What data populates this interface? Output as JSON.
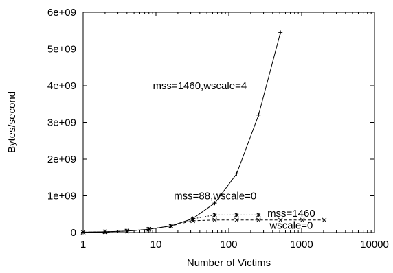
{
  "chart_data": {
    "type": "line",
    "xlabel": "Number of Victims",
    "ylabel": "Bytes/second",
    "xscale": "log",
    "xlim": [
      1,
      10000
    ],
    "ylim": [
      0,
      6000000000
    ],
    "x_ticks": [
      1,
      10,
      100,
      1000,
      10000
    ],
    "x_tick_labels": [
      "1",
      "10",
      "100",
      "1000",
      "10000"
    ],
    "y_ticks": [
      0,
      1000000000,
      2000000000,
      3000000000,
      4000000000,
      5000000000,
      6000000000
    ],
    "y_tick_labels": [
      "0",
      "1e+09",
      "2e+09",
      "3e+09",
      "4e+09",
      "5e+09",
      "6e+09"
    ],
    "grid": false,
    "series": [
      {
        "marker": "+",
        "dash": "solid",
        "x": [
          1,
          2,
          4,
          8,
          16,
          32,
          64,
          128,
          256,
          512
        ],
        "y": [
          10000000,
          20000000,
          40000000,
          90000000,
          180000000,
          380000000,
          800000000,
          1600000000,
          3200000000,
          5450000000
        ]
      },
      {
        "marker": "*",
        "dash": "dotted",
        "x": [
          1,
          2,
          4,
          8,
          16,
          32,
          64,
          128,
          256
        ],
        "y": [
          10000000,
          20000000,
          40000000,
          90000000,
          180000000,
          370000000,
          480000000,
          480000000,
          480000000
        ]
      },
      {
        "marker": "x",
        "dash": "dashed",
        "x": [
          1,
          2,
          4,
          8,
          16,
          32,
          64,
          128,
          256,
          512,
          1024,
          2048
        ],
        "y": [
          10000000,
          20000000,
          40000000,
          90000000,
          180000000,
          320000000,
          340000000,
          340000000,
          340000000,
          340000000,
          340000000,
          340000000
        ]
      }
    ],
    "annotations": [
      {
        "text": "mss=1460,wscale=4",
        "x": 40,
        "y": 4000000000
      },
      {
        "text": "mss=88,wscale=0",
        "x": 65,
        "y": 1000000000
      },
      {
        "text": "mss=1460",
        "x": 720,
        "y": 520000000
      },
      {
        "text": "wscale=0",
        "x": 720,
        "y": 200000000
      }
    ]
  }
}
